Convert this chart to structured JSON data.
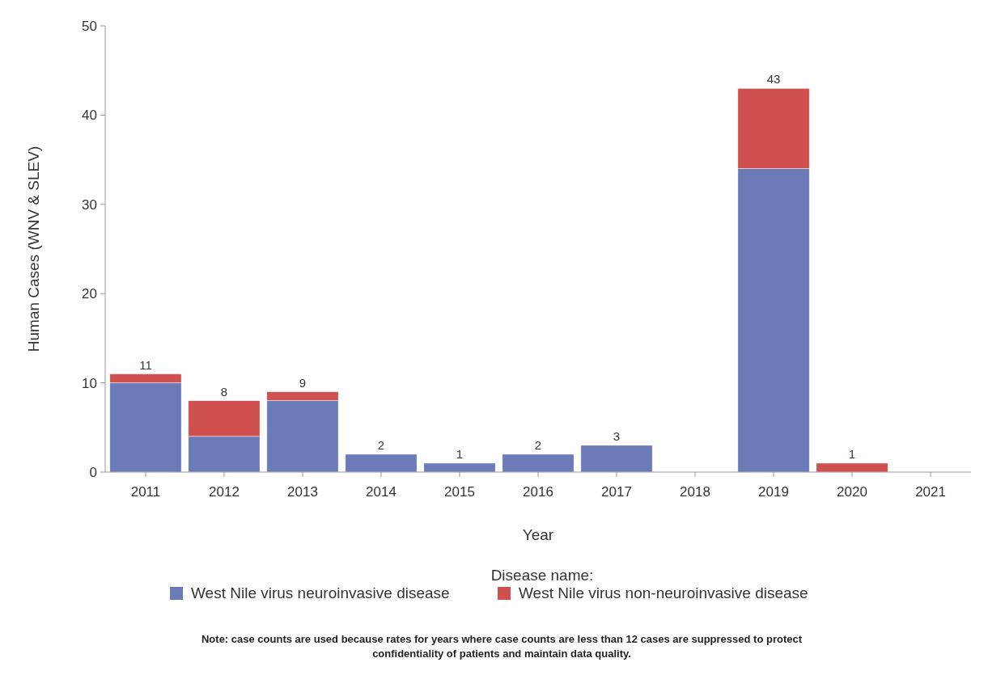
{
  "chart_data": {
    "type": "bar",
    "stacked": true,
    "xlabel": "Year",
    "ylabel": "Human Cases (WNV & SLEV)",
    "legend_title": "Disease name:",
    "legend": "bottom",
    "categories": [
      "2011",
      "2012",
      "2013",
      "2014",
      "2015",
      "2016",
      "2017",
      "2018",
      "2019",
      "2020",
      "2021"
    ],
    "series": [
      {
        "name": "West Nile virus neuroinvasive disease",
        "color": "#6b7bb7",
        "values": [
          10,
          4,
          8,
          2,
          1,
          2,
          3,
          0,
          34,
          0,
          0
        ]
      },
      {
        "name": "West Nile virus non-neuroinvasive disease",
        "color": "#d05050",
        "values": [
          1,
          4,
          1,
          0,
          0,
          0,
          0,
          0,
          9,
          1,
          0
        ]
      }
    ],
    "totals": [
      "11",
      "8",
      "9",
      "2",
      "1",
      "2",
      "3",
      null,
      "43",
      "1",
      null
    ],
    "ylim": [
      0,
      50
    ],
    "yticks": [
      0,
      10,
      20,
      30,
      40,
      50
    ],
    "grid": false,
    "annotations": [
      "Note: case counts are used because rates for years where case counts are less than 12 cases are suppressed to protect confidentiality of patients and maintain data quality."
    ]
  }
}
